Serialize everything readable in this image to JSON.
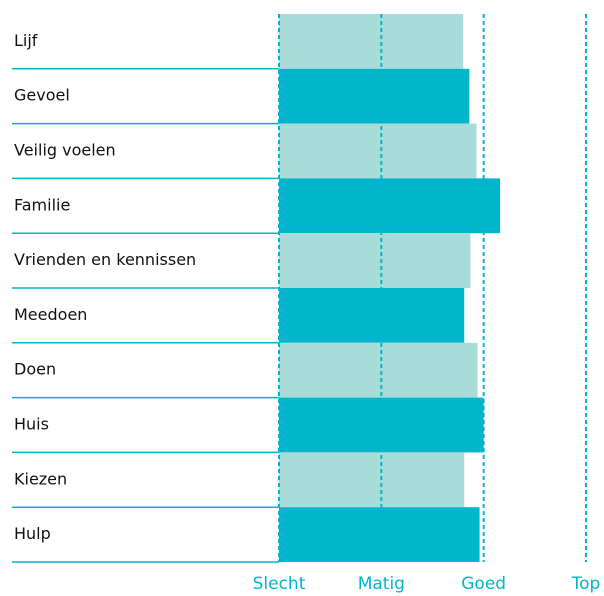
{
  "chart_data": {
    "type": "hbar",
    "categories": [
      "Lijf",
      "Gevoel",
      "Veilig voelen",
      "Familie",
      "Vrienden en kennissen",
      "Meedoen",
      "Doen",
      "Huis",
      "Kiezen",
      "Hulp"
    ],
    "values": [
      2.8,
      2.86,
      2.93,
      3.16,
      2.87,
      2.81,
      2.94,
      3.0,
      2.81,
      2.96
    ],
    "colors": [
      "#a8dcd8",
      "#00b5cc"
    ],
    "xlim": [
      1,
      4
    ],
    "xticks": [
      {
        "value": 1,
        "label": "Slecht"
      },
      {
        "value": 2,
        "label": "Matig"
      },
      {
        "value": 3,
        "label": "Goed"
      },
      {
        "value": 4,
        "label": "Top"
      }
    ],
    "grid": true
  }
}
